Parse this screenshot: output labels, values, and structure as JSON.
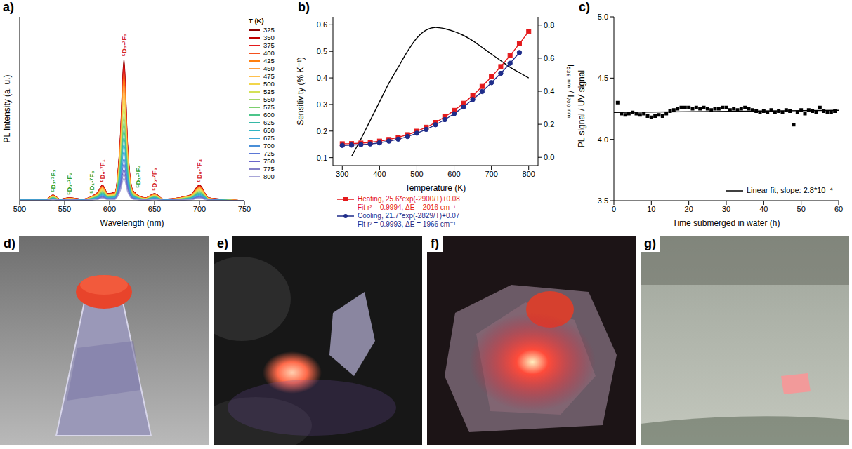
{
  "chart_data": [
    {
      "panel": "a)",
      "type": "line",
      "x_label": "Wavelength (nm)",
      "y_label": "PL Intensity (a. u.)",
      "grid": false,
      "tick_labels": "x",
      "legend": "right",
      "legend_title": "T (K)",
      "x": [
        500,
        530,
        537,
        545,
        555,
        570,
        580,
        587,
        592,
        598,
        606,
        612,
        616,
        620,
        626,
        640,
        650,
        660,
        690,
        700,
        710,
        750
      ],
      "xlim": [
        500,
        750
      ],
      "xticks": [
        500,
        550,
        600,
        650,
        700,
        750
      ],
      "ylim": [
        0,
        1.3
      ],
      "series": [
        {
          "name": "325",
          "color": "#8b0000",
          "values": [
            0.01,
            0.01,
            0.04,
            0.01,
            0.02,
            0.01,
            0.03,
            0.06,
            0.11,
            0.05,
            0.06,
            0.45,
            1,
            0.4,
            0.07,
            0.02,
            0.05,
            0.01,
            0.04,
            0.11,
            0.02,
            0
          ]
        },
        {
          "name": "350",
          "color": "#c00000",
          "values": [
            0.01,
            0.01,
            0.039,
            0.01,
            0.02,
            0.01,
            0.029,
            0.059,
            0.108,
            0.049,
            0.059,
            0.441,
            0.98,
            0.392,
            0.069,
            0.02,
            0.049,
            0.01,
            0.039,
            0.108,
            0.02,
            0
          ]
        },
        {
          "name": "375",
          "color": "#e31a1c",
          "values": [
            0.01,
            0.01,
            0.038,
            0.01,
            0.019,
            0.01,
            0.029,
            0.057,
            0.105,
            0.048,
            0.057,
            0.428,
            0.95,
            0.38,
            0.067,
            0.019,
            0.048,
            0.01,
            0.038,
            0.105,
            0.019,
            0
          ]
        },
        {
          "name": "400",
          "color": "#f4511e",
          "values": [
            0.009,
            0.009,
            0.036,
            0.009,
            0.018,
            0.009,
            0.027,
            0.055,
            0.1,
            0.046,
            0.055,
            0.41,
            0.91,
            0.364,
            0.064,
            0.018,
            0.046,
            0.009,
            0.036,
            0.1,
            0.018,
            0
          ]
        },
        {
          "name": "425",
          "color": "#ff7f0e",
          "values": [
            0.009,
            0.009,
            0.035,
            0.009,
            0.017,
            0.009,
            0.026,
            0.052,
            0.096,
            0.044,
            0.052,
            0.392,
            0.87,
            0.348,
            0.061,
            0.017,
            0.044,
            0.009,
            0.035,
            0.096,
            0.017,
            0
          ]
        },
        {
          "name": "450",
          "color": "#ffa040",
          "values": [
            0.008,
            0.008,
            0.033,
            0.008,
            0.016,
            0.008,
            0.025,
            0.049,
            0.09,
            0.041,
            0.049,
            0.369,
            0.82,
            0.328,
            0.057,
            0.016,
            0.041,
            0.008,
            0.033,
            0.09,
            0.016,
            0
          ]
        },
        {
          "name": "475",
          "color": "#ffc04d",
          "values": [
            0.008,
            0.008,
            0.031,
            0.008,
            0.015,
            0.008,
            0.023,
            0.046,
            0.085,
            0.039,
            0.046,
            0.347,
            0.77,
            0.308,
            0.054,
            0.015,
            0.039,
            0.008,
            0.031,
            0.085,
            0.015,
            0
          ]
        },
        {
          "name": "500",
          "color": "#f2d64b",
          "values": [
            0.007,
            0.007,
            0.029,
            0.007,
            0.014,
            0.007,
            0.022,
            0.043,
            0.079,
            0.036,
            0.043,
            0.324,
            0.72,
            0.288,
            0.05,
            0.014,
            0.036,
            0.007,
            0.029,
            0.079,
            0.014,
            0
          ]
        },
        {
          "name": "525",
          "color": "#d4e157",
          "values": [
            0.007,
            0.007,
            0.026,
            0.007,
            0.013,
            0.007,
            0.02,
            0.04,
            0.073,
            0.033,
            0.04,
            0.297,
            0.66,
            0.264,
            0.046,
            0.013,
            0.033,
            0.007,
            0.026,
            0.073,
            0.013,
            0
          ]
        },
        {
          "name": "550",
          "color": "#a5d66b",
          "values": [
            0.006,
            0.006,
            0.024,
            0.006,
            0.012,
            0.006,
            0.018,
            0.036,
            0.066,
            0.03,
            0.036,
            0.27,
            0.6,
            0.24,
            0.042,
            0.012,
            0.03,
            0.006,
            0.024,
            0.066,
            0.012,
            0
          ]
        },
        {
          "name": "575",
          "color": "#7ccf6e",
          "values": [
            0.006,
            0.006,
            0.022,
            0.006,
            0.011,
            0.006,
            0.017,
            0.033,
            0.061,
            0.028,
            0.033,
            0.248,
            0.55,
            0.22,
            0.039,
            0.011,
            0.028,
            0.006,
            0.022,
            0.061,
            0.011,
            0
          ]
        },
        {
          "name": "600",
          "color": "#4cc58a",
          "values": [
            0.005,
            0.005,
            0.02,
            0.005,
            0.01,
            0.005,
            0.015,
            0.03,
            0.055,
            0.025,
            0.03,
            0.225,
            0.5,
            0.2,
            0.035,
            0.01,
            0.025,
            0.005,
            0.02,
            0.055,
            0.01,
            0
          ]
        },
        {
          "name": "625",
          "color": "#36b8a6",
          "values": [
            0.005,
            0.005,
            0.018,
            0.005,
            0.009,
            0.005,
            0.014,
            0.027,
            0.05,
            0.023,
            0.027,
            0.203,
            0.45,
            0.18,
            0.032,
            0.009,
            0.023,
            0.005,
            0.018,
            0.05,
            0.009,
            0
          ]
        },
        {
          "name": "650",
          "color": "#2eb5c4",
          "values": [
            0.004,
            0.004,
            0.016,
            0.004,
            0.008,
            0.004,
            0.012,
            0.024,
            0.044,
            0.02,
            0.024,
            0.18,
            0.4,
            0.16,
            0.028,
            0.008,
            0.02,
            0.004,
            0.016,
            0.044,
            0.008,
            0
          ]
        },
        {
          "name": "675",
          "color": "#3fa7d6",
          "values": [
            0.004,
            0.004,
            0.014,
            0.004,
            0.007,
            0.004,
            0.011,
            0.021,
            0.039,
            0.018,
            0.021,
            0.158,
            0.35,
            0.14,
            0.025,
            0.007,
            0.018,
            0.004,
            0.014,
            0.039,
            0.007,
            0
          ]
        },
        {
          "name": "700",
          "color": "#4a8fd8",
          "values": [
            0.003,
            0.003,
            0.012,
            0.003,
            0.006,
            0.003,
            0.009,
            0.018,
            0.033,
            0.015,
            0.018,
            0.135,
            0.3,
            0.12,
            0.021,
            0.006,
            0.015,
            0.003,
            0.012,
            0.033,
            0.006,
            0
          ]
        },
        {
          "name": "725",
          "color": "#5b78d6",
          "values": [
            0.003,
            0.003,
            0.01,
            0.003,
            0.005,
            0.003,
            0.008,
            0.016,
            0.029,
            0.013,
            0.016,
            0.117,
            0.26,
            0.104,
            0.018,
            0.005,
            0.013,
            0.003,
            0.01,
            0.029,
            0.005,
            0
          ]
        },
        {
          "name": "750",
          "color": "#6a66c9",
          "values": [
            0.002,
            0.002,
            0.009,
            0.002,
            0.004,
            0.002,
            0.007,
            0.013,
            0.024,
            0.011,
            0.013,
            0.099,
            0.22,
            0.088,
            0.015,
            0.004,
            0.011,
            0.002,
            0.009,
            0.024,
            0.004,
            0
          ]
        },
        {
          "name": "775",
          "color": "#8480c8",
          "values": [
            0.002,
            0.002,
            0.008,
            0.002,
            0.004,
            0.002,
            0.006,
            0.011,
            0.021,
            0.01,
            0.011,
            0.086,
            0.19,
            0.076,
            0.013,
            0.004,
            0.01,
            0.002,
            0.008,
            0.021,
            0.004,
            0
          ]
        },
        {
          "name": "800",
          "color": "#a8a6d8",
          "values": [
            0.002,
            0.002,
            0.006,
            0.002,
            0.003,
            0.002,
            0.005,
            0.01,
            0.018,
            0.008,
            0.01,
            0.072,
            0.16,
            0.064,
            0.011,
            0.003,
            0.008,
            0.002,
            0.006,
            0.018,
            0.003,
            0
          ]
        }
      ],
      "annotations": [
        {
          "text": "⁵D₁-⁷F₁",
          "x": 537,
          "color": "#2ca02c"
        },
        {
          "text": "⁵D₁-⁷F₂",
          "x": 555,
          "color": "#2ca02c"
        },
        {
          "text": "⁵D₁-⁷F₃",
          "x": 580,
          "color": "#2ca02c"
        },
        {
          "text": "⁵D₀-⁷F₁",
          "x": 592,
          "color": "#d62728"
        },
        {
          "text": "⁵D₀-⁷F₂",
          "x": 616,
          "color": "#d62728"
        },
        {
          "text": "⁵D₁-⁷F₄",
          "x": 632,
          "color": "#2ca02c"
        },
        {
          "text": "⁵D₀-⁷F₃",
          "x": 650,
          "color": "#d62728"
        },
        {
          "text": "⁵D₀-⁷F₄",
          "x": 700,
          "color": "#d62728"
        }
      ]
    },
    {
      "panel": "b)",
      "type": "line",
      "x_label": "Temperature (K)",
      "y_label": "Sensitivity (% K⁻¹)",
      "y2_label": "I₅₃₈ ₙₘ / I₇₀₀ ₙₘ",
      "grid": false,
      "legend": "bottom",
      "xlim": [
        275,
        825
      ],
      "xticks": [
        300,
        400,
        500,
        600,
        700,
        800
      ],
      "ylim": [
        0.07,
        0.63
      ],
      "yticks": [
        0.1,
        0.2,
        0.3,
        0.4,
        0.5,
        0.6
      ],
      "y2lim": [
        -0.05,
        0.85
      ],
      "y2ticks": [
        {
          "value": 0,
          "label": "0.0"
        },
        0.2,
        0.4,
        0.6,
        0.8
      ],
      "series": [
        {
          "color": "#000000",
          "axis": "y",
          "marker": "none",
          "line_style": "solid",
          "x": [
            325,
            350,
            375,
            400,
            425,
            450,
            475,
            500,
            525,
            550,
            575,
            600,
            625,
            650,
            675,
            700,
            725,
            750,
            775,
            800
          ],
          "values": [
            0.105,
            0.17,
            0.24,
            0.31,
            0.38,
            0.44,
            0.5,
            0.55,
            0.58,
            0.59,
            0.585,
            0.575,
            0.56,
            0.54,
            0.515,
            0.49,
            0.465,
            0.44,
            0.42,
            0.4
          ]
        },
        {
          "name": "Heating, 25.6*exp(-2900/T)+0.08",
          "color": "#e41a1c",
          "axis": "y2",
          "marker": "square",
          "line_style": "solid",
          "x": [
            300,
            325,
            350,
            375,
            400,
            425,
            450,
            475,
            500,
            525,
            550,
            575,
            600,
            625,
            650,
            675,
            700,
            725,
            750,
            775,
            800
          ],
          "values": [
            0.082,
            0.083,
            0.086,
            0.091,
            0.098,
            0.108,
            0.121,
            0.137,
            0.158,
            0.182,
            0.211,
            0.245,
            0.284,
            0.327,
            0.375,
            0.429,
            0.487,
            0.549,
            0.616,
            0.687,
            0.762
          ]
        },
        {
          "name": "Cooling, 21.7*exp(-2829/T)+0.07",
          "color": "#1f2d8a",
          "axis": "y2",
          "marker": "circle",
          "line_style": "solid",
          "x": [
            300,
            325,
            350,
            375,
            400,
            425,
            450,
            475,
            500,
            525,
            550,
            575,
            600,
            625,
            650,
            675,
            700,
            725,
            750,
            775
          ],
          "values": [
            0.072,
            0.074,
            0.077,
            0.081,
            0.088,
            0.098,
            0.11,
            0.126,
            0.146,
            0.169,
            0.197,
            0.228,
            0.264,
            0.305,
            0.35,
            0.398,
            0.452,
            0.508,
            0.569,
            0.634
          ]
        }
      ],
      "annotations": [
        {
          "text": "Fit r² = 0.9994, ΔE = 2016 cm⁻¹",
          "color": "#e41a1c"
        },
        {
          "text": "Fit r² = 0.9993, ΔE = 1966 cm⁻¹",
          "color": "#1f2d8a"
        }
      ]
    },
    {
      "panel": "c)",
      "type": "scatter",
      "x_label": "Time submerged in water (h)",
      "y_label": "PL signal / UV signal",
      "grid": false,
      "legend": "lower right",
      "xlim": [
        0,
        60
      ],
      "xticks": [
        0,
        10,
        20,
        30,
        40,
        50,
        60
      ],
      "ylim": [
        3.5,
        5.0
      ],
      "yticks": [
        3.5,
        {
          "value": 4,
          "label": "4.0"
        },
        4.5,
        {
          "value": 5,
          "label": "5.0"
        }
      ],
      "series": [
        {
          "type": "scatter",
          "color": "#000000",
          "marker": "square",
          "x": [
            1,
            2,
            3,
            4,
            5,
            6,
            7,
            8,
            9,
            10,
            11,
            12,
            13,
            14,
            15,
            16,
            17,
            18,
            19,
            20,
            21,
            22,
            23,
            24,
            25,
            26,
            27,
            28,
            29,
            30,
            31,
            32,
            33,
            34,
            35,
            36,
            37,
            38,
            39,
            40,
            41,
            42,
            43,
            44,
            45,
            46,
            47,
            48,
            49,
            50,
            51,
            52,
            53,
            54,
            55,
            56,
            57,
            58,
            59
          ],
          "values": [
            4.3,
            4.21,
            4.2,
            4.21,
            4.22,
            4.21,
            4.2,
            4.21,
            4.19,
            4.18,
            4.19,
            4.2,
            4.19,
            4.21,
            4.23,
            4.24,
            4.25,
            4.26,
            4.26,
            4.26,
            4.25,
            4.26,
            4.25,
            4.26,
            4.25,
            4.24,
            4.25,
            4.25,
            4.26,
            4.26,
            4.24,
            4.25,
            4.24,
            4.25,
            4.26,
            4.25,
            4.24,
            4.23,
            4.22,
            4.23,
            4.22,
            4.24,
            4.22,
            4.23,
            4.22,
            4.24,
            4.23,
            4.12,
            4.22,
            4.24,
            4.21,
            4.24,
            4.23,
            4.22,
            4.26,
            4.23,
            4.22,
            4.22,
            4.23
          ]
        },
        {
          "type": "line",
          "name": "Linear fit, slope: 2.8*10⁻⁴",
          "color": "#000000",
          "marker": "none",
          "line_style": "solid",
          "x": [
            0,
            60
          ],
          "values": [
            4.22,
            4.237
          ]
        }
      ]
    }
  ],
  "photos": [
    {
      "label": "d)"
    },
    {
      "label": "e)"
    },
    {
      "label": "f)"
    },
    {
      "label": "g)"
    }
  ]
}
